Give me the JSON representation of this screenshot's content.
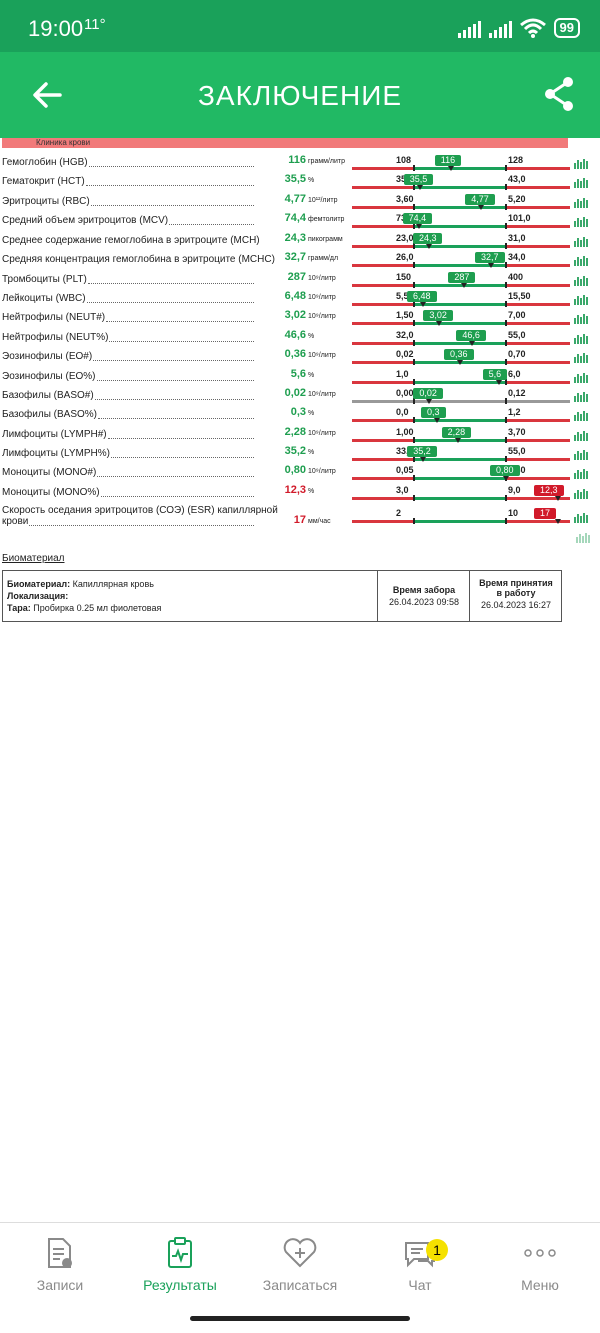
{
  "status": {
    "time": "19:00",
    "temp": "11°",
    "battery": "99"
  },
  "appbar": {
    "title": "ЗАКЛЮЧЕНИЕ"
  },
  "section": {
    "label": "Клиника крови"
  },
  "rows": [
    {
      "name": "Гемоглобин (HGB)",
      "value": "116",
      "unit": "грамм/литр",
      "lo": "108",
      "hi": "128",
      "badge": "116",
      "state": "normal"
    },
    {
      "name": "Гематокрит (HCT)",
      "value": "35,5",
      "unit": "%",
      "lo": "35,0",
      "hi": "43,0",
      "badge": "35,5",
      "state": "normal"
    },
    {
      "name": "Эритроциты (RBC)",
      "value": "4,77",
      "unit": "10¹²/литр",
      "lo": "3,60",
      "hi": "5,20",
      "badge": "4,77",
      "state": "normal"
    },
    {
      "name": "Средний объем эритроцитов (MCV)",
      "value": "74,4",
      "unit": "фемтолитр",
      "lo": "73,0",
      "hi": "101,0",
      "badge": "74,4",
      "state": "normal"
    },
    {
      "name": "Среднее содержание гемоглобина в эритроците (MCH)",
      "value": "24,3",
      "unit": "пикограмм",
      "lo": "23,0",
      "hi": "31,0",
      "badge": "24,3",
      "state": "normal"
    },
    {
      "name": "Средняя концентрация гемоглобина в эритроците (MCHC)",
      "value": "32,7",
      "unit": "грамм/дл",
      "lo": "26,0",
      "hi": "34,0",
      "badge": "32,7",
      "state": "normal"
    },
    {
      "name": "Тромбоциты (PLT)",
      "value": "287",
      "unit": "10⁹/литр",
      "lo": "150",
      "hi": "400",
      "badge": "287",
      "state": "normal"
    },
    {
      "name": "Лейкоциты (WBC)",
      "value": "6,48",
      "unit": "10⁹/литр",
      "lo": "5,50",
      "hi": "15,50",
      "badge": "6,48",
      "state": "normal"
    },
    {
      "name": "Нейтрофилы (NEUT#)",
      "value": "3,02",
      "unit": "10⁹/литр",
      "lo": "1,50",
      "hi": "7,00",
      "badge": "3,02",
      "state": "normal"
    },
    {
      "name": "Нейтрофилы (NEUT%)",
      "value": "46,6",
      "unit": "%",
      "lo": "32,0",
      "hi": "55,0",
      "badge": "46,6",
      "state": "normal"
    },
    {
      "name": "Эозинофилы (EO#)",
      "value": "0,36",
      "unit": "10⁹/литр",
      "lo": "0,02",
      "hi": "0,70",
      "badge": "0,36",
      "state": "normal"
    },
    {
      "name": "Эозинофилы (EO%)",
      "value": "5,6",
      "unit": "%",
      "lo": "1,0",
      "hi": "6,0",
      "badge": "5,6",
      "state": "normal"
    },
    {
      "name": "Базофилы (BASO#)",
      "value": "0,02",
      "unit": "10⁹/литр",
      "lo": "0,00",
      "hi": "0,12",
      "badge": "0,02",
      "state": "normal",
      "grey": true
    },
    {
      "name": "Базофилы (BASO%)",
      "value": "0,3",
      "unit": "%",
      "lo": "0,0",
      "hi": "1,2",
      "badge": "0,3",
      "state": "normal"
    },
    {
      "name": "Лимфоциты (LYMPH#)",
      "value": "2,28",
      "unit": "10⁹/литр",
      "lo": "1,00",
      "hi": "3,70",
      "badge": "2,28",
      "state": "normal"
    },
    {
      "name": "Лимфоциты (LYMPH%)",
      "value": "35,2",
      "unit": "%",
      "lo": "33,0",
      "hi": "55,0",
      "badge": "35,2",
      "state": "normal"
    },
    {
      "name": "Моноциты (MONO#)",
      "value": "0,80",
      "unit": "10⁹/литр",
      "lo": "0,05",
      "hi": "0,80",
      "badge": "0,80",
      "state": "normal"
    },
    {
      "name": "Моноциты (MONO%)",
      "value": "12,3",
      "unit": "%",
      "lo": "3,0",
      "hi": "9,0",
      "badge": "12,3",
      "state": "high"
    },
    {
      "name": "Скорость оседания эритроцитов (СОЭ) (ESR) капиллярной",
      "name2": "крови",
      "value": "17",
      "unit": "мм/час",
      "lo": "2",
      "hi": "10",
      "badge": "17",
      "state": "high"
    }
  ],
  "biomaterial": {
    "title": "Биоматериал",
    "material_label": "Биоматериал:",
    "material_value": "Капиллярная кровь",
    "location_label": "Локализация:",
    "tube_label": "Тара:",
    "tube_value": "Пробирка 0.25 мл фиолетовая",
    "collect_label": "Время забора",
    "collect_value": "26.04.2023 09:58",
    "accept_label": "Время принятия в работу",
    "accept_value": "26.04.2023 16:27"
  },
  "nav": [
    {
      "label": "Записи",
      "icon": "document-icon"
    },
    {
      "label": "Результаты",
      "icon": "results-icon",
      "active": true
    },
    {
      "label": "Записаться",
      "icon": "heart-plus-icon"
    },
    {
      "label": "Чат",
      "icon": "chat-icon",
      "badge": "1"
    },
    {
      "label": "Меню",
      "icon": "more-dots-icon"
    }
  ]
}
